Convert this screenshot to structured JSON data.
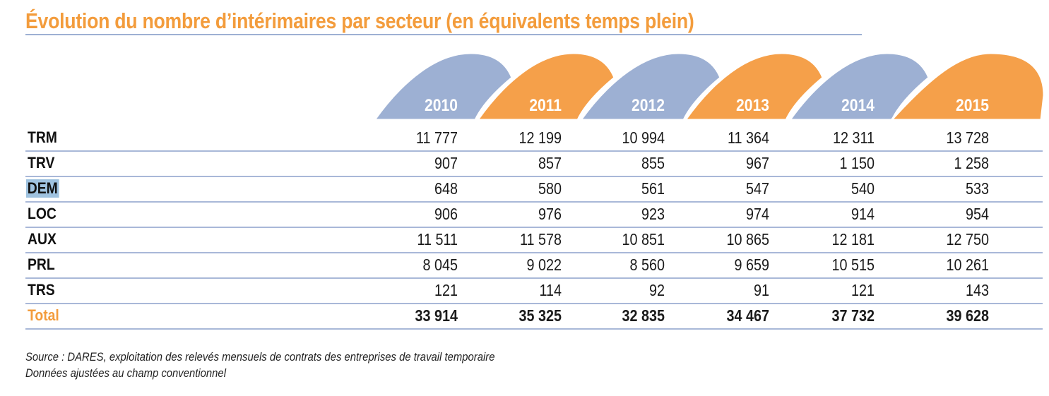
{
  "title": "Évolution du nombre d’intérimaires par secteur (en équivalents temps plein)",
  "colors": {
    "accent_orange": "#f5a04a",
    "accent_blue": "#9db0d3",
    "title_orange": "#f39c3c",
    "highlight": "#9fc2df"
  },
  "columns": [
    "2010",
    "2011",
    "2012",
    "2013",
    "2014",
    "2015"
  ],
  "rows": [
    {
      "label": "TRM",
      "values": [
        "11 777",
        "12 199",
        "10 994",
        "11 364",
        "12 311",
        "13 728"
      ]
    },
    {
      "label": "TRV",
      "values": [
        "907",
        "857",
        "855",
        "967",
        "1 150",
        "1 258"
      ]
    },
    {
      "label": "DEM",
      "values": [
        "648",
        "580",
        "561",
        "547",
        "540",
        "533"
      ],
      "highlighted": true
    },
    {
      "label": "LOC",
      "values": [
        "906",
        "976",
        "923",
        "974",
        "914",
        "954"
      ]
    },
    {
      "label": "AUX",
      "values": [
        "11 511",
        "11 578",
        "10 851",
        "10 865",
        "12 181",
        "12 750"
      ]
    },
    {
      "label": "PRL",
      "values": [
        "8 045",
        "9 022",
        "8 560",
        "9 659",
        "10 515",
        "10 261"
      ]
    },
    {
      "label": "TRS",
      "values": [
        "121",
        "114",
        "92",
        "91",
        "121",
        "143"
      ]
    }
  ],
  "total": {
    "label": "Total",
    "values": [
      "33 914",
      "35 325",
      "32 835",
      "34 467",
      "37 732",
      "39 628"
    ]
  },
  "notes": [
    "Source : DARES, exploitation des relevés mensuels de contrats des entreprises de travail temporaire",
    "Données ajustées au champ conventionnel"
  ]
}
